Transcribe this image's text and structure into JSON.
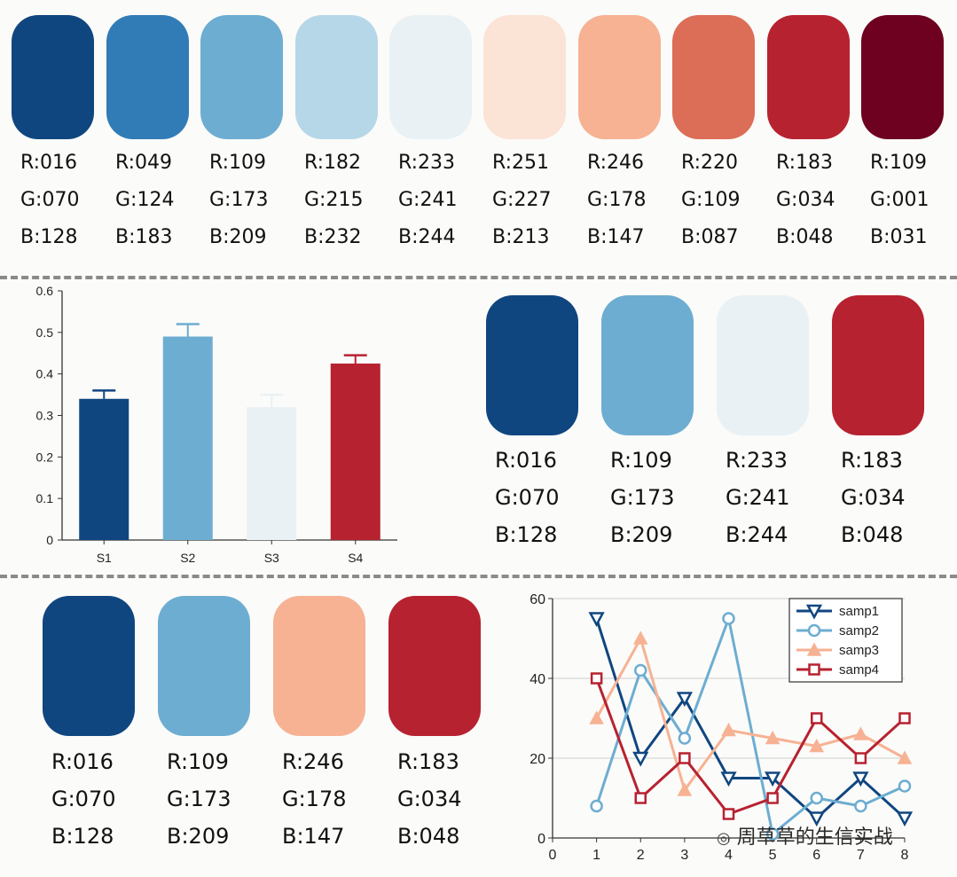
{
  "colors": {
    "c1": "#104680",
    "c2": "#317CB7",
    "c3": "#6DADD1",
    "c4": "#B6D7E8",
    "c5": "#E9F1F4",
    "c6": "#FBE3D5",
    "c7": "#F6B293",
    "c8": "#DC6D57",
    "c9": "#B72230",
    "c10": "#6D011F"
  },
  "palette_top": [
    {
      "r": "R:016",
      "g": "G:070",
      "b": "B:128"
    },
    {
      "r": "R:049",
      "g": "G:124",
      "b": "B:183"
    },
    {
      "r": "R:109",
      "g": "G:173",
      "b": "B:209"
    },
    {
      "r": "R:182",
      "g": "G:215",
      "b": "B:232"
    },
    {
      "r": "R:233",
      "g": "G:241",
      "b": "B:244"
    },
    {
      "r": "R:251",
      "g": "G:227",
      "b": "B:213"
    },
    {
      "r": "R:246",
      "g": "G:178",
      "b": "B:147"
    },
    {
      "r": "R:220",
      "g": "G:109",
      "b": "B:087"
    },
    {
      "r": "R:183",
      "g": "G:034",
      "b": "B:048"
    },
    {
      "r": "R:109",
      "g": "G:001",
      "b": "B:031"
    }
  ],
  "palette_mid": [
    {
      "r": "R:016",
      "g": "G:070",
      "b": "B:128"
    },
    {
      "r": "R:109",
      "g": "G:173",
      "b": "B:209"
    },
    {
      "r": "R:233",
      "g": "G:241",
      "b": "B:244"
    },
    {
      "r": "R:183",
      "g": "G:034",
      "b": "B:048"
    }
  ],
  "palette_bottom": [
    {
      "r": "R:016",
      "g": "G:070",
      "b": "B:128"
    },
    {
      "r": "R:109",
      "g": "G:173",
      "b": "B:209"
    },
    {
      "r": "R:246",
      "g": "G:178",
      "b": "B:147"
    },
    {
      "r": "R:183",
      "g": "G:034",
      "b": "B:048"
    }
  ],
  "watermark": "周草草的生信实战",
  "chart_data": [
    {
      "type": "bar",
      "categories": [
        "S1",
        "S2",
        "S3",
        "S4"
      ],
      "values": [
        0.34,
        0.49,
        0.32,
        0.425
      ],
      "errors": [
        0.02,
        0.03,
        0.03,
        0.02
      ],
      "colors": [
        "#104680",
        "#6DADD1",
        "#E9F1F4",
        "#B72230"
      ],
      "ylim": [
        0,
        0.6
      ],
      "yticks": [
        "0",
        "0.1",
        "0.2",
        "0.3",
        "0.4",
        "0.5",
        "0.6"
      ],
      "title": "",
      "xlabel": "",
      "ylabel": ""
    },
    {
      "type": "line",
      "x": [
        1,
        2,
        3,
        4,
        5,
        6,
        7,
        8
      ],
      "xticks": [
        "0",
        "1",
        "2",
        "3",
        "4",
        "5",
        "6",
        "7",
        "8"
      ],
      "yticks": [
        "0",
        "20",
        "40",
        "60"
      ],
      "xlim": [
        0,
        8
      ],
      "ylim": [
        0,
        60
      ],
      "grid": true,
      "legend": "top-right",
      "series": [
        {
          "name": "samp1",
          "values": [
            55,
            20,
            35,
            15,
            15,
            5,
            15,
            5
          ],
          "color": "#104680",
          "marker": "triangle-down"
        },
        {
          "name": "samp2",
          "values": [
            8,
            42,
            25,
            55,
            1,
            10,
            8,
            13
          ],
          "color": "#6DADD1",
          "marker": "circle"
        },
        {
          "name": "samp3",
          "values": [
            30,
            50,
            12,
            27,
            25,
            23,
            26,
            20
          ],
          "color": "#F6B293",
          "marker": "triangle-up"
        },
        {
          "name": "samp4",
          "values": [
            40,
            10,
            20,
            6,
            10,
            30,
            20,
            30
          ],
          "color": "#B72230",
          "marker": "square"
        }
      ]
    }
  ]
}
